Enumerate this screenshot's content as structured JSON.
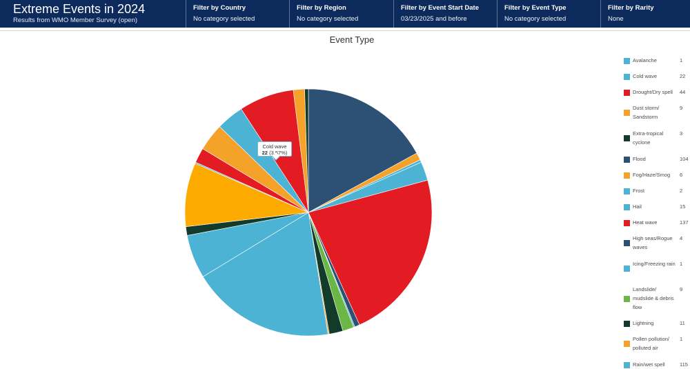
{
  "header": {
    "title": "Extreme Events in 2024",
    "subtitle": "Results from WMO Member Survey (open)"
  },
  "filters": [
    {
      "label": "Filter by Country",
      "value": "No category selected"
    },
    {
      "label": "Filter by Region",
      "value": "No category selected"
    },
    {
      "label": "Filter by Event Start Date",
      "value": "03/23/2025 and before"
    },
    {
      "label": "Filter by Event Type",
      "value": "No category selected"
    },
    {
      "label": "Filter by Rarity",
      "value": "None"
    }
  ],
  "tooltip": {
    "category": "Cold wave",
    "count": "22",
    "percent": "(3.57%)"
  },
  "chart_data": {
    "type": "pie",
    "title": "Event Type",
    "legend_position": "right",
    "slices": [
      {
        "label": "Flood",
        "value": 104,
        "color": "#2d5174"
      },
      {
        "label": "Fog/Haze/Smog",
        "value": 6,
        "color": "#f5a22a"
      },
      {
        "label": "Frost",
        "value": 2,
        "color": "#4db3d5"
      },
      {
        "label": "Hail",
        "value": 15,
        "color": "#4db3d5"
      },
      {
        "label": "Heat wave",
        "value": 137,
        "color": "#e31b23"
      },
      {
        "label": "High seas/Rogue waves",
        "value": 4,
        "color": "#2d5174"
      },
      {
        "label": "Icing/Freezing rain",
        "value": 1,
        "color": "#4db3d5"
      },
      {
        "label": "Landslide/ mudslide & debris flow",
        "value": 9,
        "color": "#6bb745"
      },
      {
        "label": "Lightning",
        "value": 11,
        "color": "#123b2b"
      },
      {
        "label": "Pollen pollution/ polluted air",
        "value": 1,
        "color": "#f5a22a"
      },
      {
        "label": "Rain/wet spell",
        "value": 115,
        "color": "#4db3d5"
      },
      {
        "label": "",
        "value": 35,
        "color": "#4db3d5"
      },
      {
        "label": "",
        "value": 7,
        "color": "#123b2b"
      },
      {
        "label": "",
        "value": 51,
        "color": "#fdab00"
      },
      {
        "label": "Avalanche",
        "value": 1,
        "color": "#4db3d5"
      },
      {
        "label": "",
        "value": 12,
        "color": "#e31b23"
      },
      {
        "label": "",
        "value": 22,
        "color": "#f5a22a"
      },
      {
        "label": "Cold wave",
        "value": 22,
        "color": "#4db3d5"
      },
      {
        "label": "Drought/Dry spell",
        "value": 44,
        "color": "#e31b23"
      },
      {
        "label": "Dust storm/ Sandstorm",
        "value": 9,
        "color": "#f5a22a"
      },
      {
        "label": "Extra-tropical cyclone",
        "value": 3,
        "color": "#123b2b"
      }
    ]
  },
  "legend": [
    {
      "label": "Avalanche",
      "count": "1",
      "color": "#4db3d5"
    },
    {
      "label": "Cold wave",
      "count": "22",
      "color": "#4db3d5"
    },
    {
      "label": "Drought/Dry spell",
      "count": "44",
      "color": "#e31b23"
    },
    {
      "label": "Dust storm/ Sandstorm",
      "count": "9",
      "color": "#f5a22a"
    },
    {
      "label": "Extra-tropical cyclone",
      "count": "3",
      "color": "#123b2b"
    },
    {
      "label": "Flood",
      "count": "104",
      "color": "#2d5174"
    },
    {
      "label": "Fog/Haze/Smog",
      "count": "6",
      "color": "#f5a22a"
    },
    {
      "label": "Frost",
      "count": "2",
      "color": "#4db3d5"
    },
    {
      "label": "Hail",
      "count": "15",
      "color": "#4db3d5"
    },
    {
      "label": "Heat wave",
      "count": "137",
      "color": "#e31b23"
    },
    {
      "label": "High seas/Rogue waves",
      "count": "4",
      "color": "#2d5174"
    },
    {
      "label": "Icing/Freezing rain",
      "count": "1",
      "color": "#4db3d5"
    },
    {
      "label": "Landslide/ mudslide & debris flow",
      "count": "9",
      "color": "#6bb745"
    },
    {
      "label": "Lightning",
      "count": "11",
      "color": "#123b2b"
    },
    {
      "label": "Pollen pollution/ polluted air",
      "count": "1",
      "color": "#f5a22a"
    },
    {
      "label": "Rain/wet spell",
      "count": "115",
      "color": "#4db3d5"
    }
  ]
}
